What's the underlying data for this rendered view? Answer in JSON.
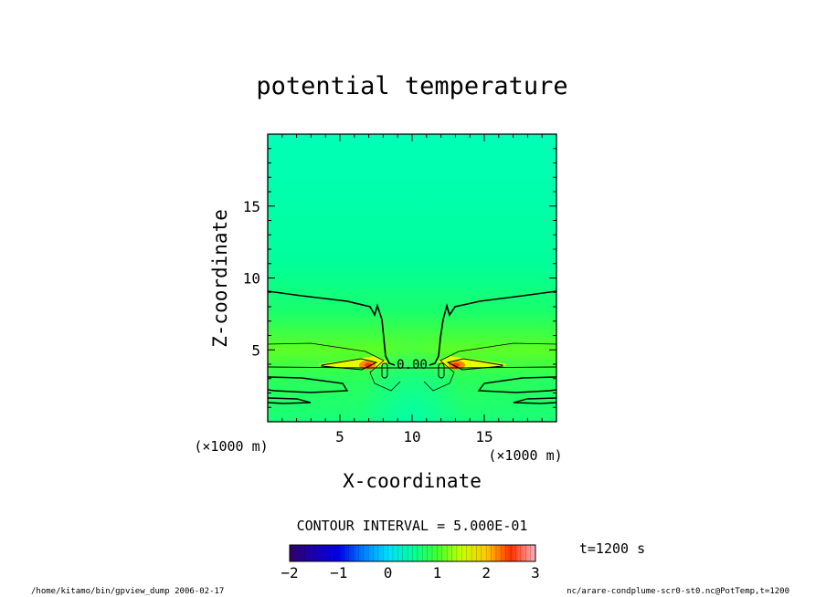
{
  "chart_data": {
    "type": "heatmap",
    "title": "potential temperature",
    "xlabel": "X-coordinate",
    "ylabel": "Z-coordinate",
    "x_unit": "(×1000 m)",
    "y_unit": "(×1000 m)",
    "xlim": [
      0,
      20
    ],
    "ylim": [
      0,
      20
    ],
    "x_ticks": [
      5,
      10,
      15
    ],
    "y_ticks": [
      5,
      10,
      15
    ],
    "x_tick_labels": [
      "5",
      "10",
      "15"
    ],
    "y_tick_labels": [
      "5",
      "10",
      "15"
    ],
    "contour_interval_label": "CONTOUR INTERVAL = 5.000E-01",
    "contour_label": "0.00",
    "colorbar": {
      "range": [
        -2,
        3
      ],
      "ticks": [
        -2,
        -1,
        0,
        1,
        2,
        3
      ],
      "tick_labels": [
        "−2",
        "−1",
        "0",
        "1",
        "2",
        "3"
      ],
      "colors": [
        "#30006a",
        "#0000cc",
        "#0070ff",
        "#00d8ff",
        "#00ff8a",
        "#9cff00",
        "#ffee00",
        "#ff9a00",
        "#ff2a00",
        "#ffb0b8"
      ]
    },
    "time_label": "t=1200 s"
  },
  "footer": {
    "left": "/home/kitamo/bin/gpview_dump  2006-02-17",
    "right": "nc/arare-condplume-scr0-st0.nc@PotTemp,t=1200"
  }
}
